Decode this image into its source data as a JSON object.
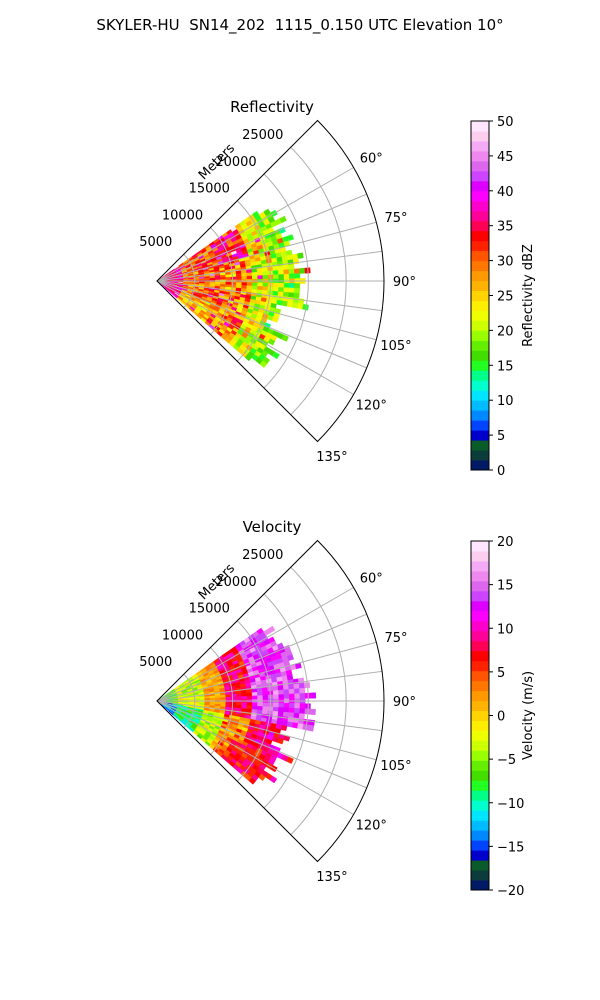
{
  "figure": {
    "title": "SKYLER-HU  SN14_202  1115_0.150 UTC Elevation 10°"
  },
  "chart_data": [
    {
      "type": "heatmap",
      "projection": "polar",
      "title": "Reflectivity",
      "radial_label": "Meters",
      "radial_ticks": [
        5000,
        10000,
        15000,
        20000,
        25000
      ],
      "radial_tick_labels": [
        "5000",
        "10000",
        "15000",
        "20000",
        "25000"
      ],
      "rlim": [
        0,
        30000
      ],
      "theta_ticks": [
        60,
        75,
        90,
        105,
        120,
        135
      ],
      "theta_tick_labels": [
        "60°",
        "75°",
        "90°",
        "105°",
        "120°",
        "135°"
      ],
      "theta_range_deg": [
        45,
        135
      ],
      "grid": true,
      "colorbar": {
        "label": "Reflectivity dBZ",
        "range": [
          0,
          50
        ],
        "ticks": [
          0,
          5,
          10,
          15,
          20,
          25,
          30,
          35,
          40,
          45,
          50
        ],
        "tick_labels": [
          "0",
          "5",
          "10",
          "15",
          "20",
          "25",
          "30",
          "35",
          "40",
          "45",
          "50"
        ],
        "colors": [
          "#001a66",
          "#0b3b3b",
          "#0b5a2a",
          "#0000cc",
          "#0044ff",
          "#0088ff",
          "#00bbff",
          "#00e5ff",
          "#00ffcc",
          "#00ff88",
          "#22ff22",
          "#44dd00",
          "#66ee00",
          "#99ff00",
          "#ccff00",
          "#eeff00",
          "#ffee00",
          "#ffd400",
          "#ffb300",
          "#ff9900",
          "#ff7700",
          "#ff5500",
          "#ff2200",
          "#ff0000",
          "#ff0055",
          "#ff0099",
          "#ff00cc",
          "#ff00ff",
          "#dd00ff",
          "#cc44ff",
          "#dd66ee",
          "#ee88ee",
          "#f5aaf5",
          "#fccfee",
          "#ffe6ff"
        ]
      },
      "data_summary": {
        "range_extent_m": [
          0,
          20000
        ],
        "azimuth_extent_deg": [
          55,
          130
        ],
        "typical_values_dbz": [
          15,
          35
        ],
        "max_values_dbz": 40
      }
    },
    {
      "type": "heatmap",
      "projection": "polar",
      "title": "Velocity",
      "radial_label": "Meters",
      "radial_ticks": [
        5000,
        10000,
        15000,
        20000,
        25000
      ],
      "radial_tick_labels": [
        "5000",
        "10000",
        "15000",
        "20000",
        "25000"
      ],
      "rlim": [
        0,
        30000
      ],
      "theta_ticks": [
        60,
        75,
        90,
        105,
        120,
        135
      ],
      "theta_tick_labels": [
        "60°",
        "75°",
        "90°",
        "105°",
        "120°",
        "135°"
      ],
      "theta_range_deg": [
        45,
        135
      ],
      "grid": true,
      "colorbar": {
        "label": "Velocity (m/s)",
        "range": [
          -20,
          20
        ],
        "ticks": [
          -20,
          -15,
          -10,
          -5,
          0,
          5,
          10,
          15,
          20
        ],
        "tick_labels": [
          "−20",
          "−15",
          "−10",
          "−5",
          "0",
          "5",
          "10",
          "15",
          "20"
        ],
        "colors": [
          "#001a66",
          "#0b3b3b",
          "#0b5a2a",
          "#0000cc",
          "#0044ff",
          "#0088ff",
          "#00bbff",
          "#00e5ff",
          "#00ffcc",
          "#00ff88",
          "#22ff22",
          "#44dd00",
          "#66ee00",
          "#99ff00",
          "#ccff00",
          "#eeff00",
          "#ffee00",
          "#ffd400",
          "#ffb300",
          "#ff9900",
          "#ff7700",
          "#ff5500",
          "#ff2200",
          "#ff0000",
          "#ff0055",
          "#ff0099",
          "#ff00cc",
          "#ff00ff",
          "#dd00ff",
          "#cc44ff",
          "#dd66ee",
          "#ee88ee",
          "#f5aaf5",
          "#fccfee",
          "#ffe6ff"
        ]
      },
      "data_summary": {
        "range_extent_m": [
          0,
          20000
        ],
        "azimuth_extent_deg": [
          55,
          130
        ],
        "typical_values_ms": [
          -8,
          15
        ],
        "max_values_ms": 16
      }
    }
  ]
}
